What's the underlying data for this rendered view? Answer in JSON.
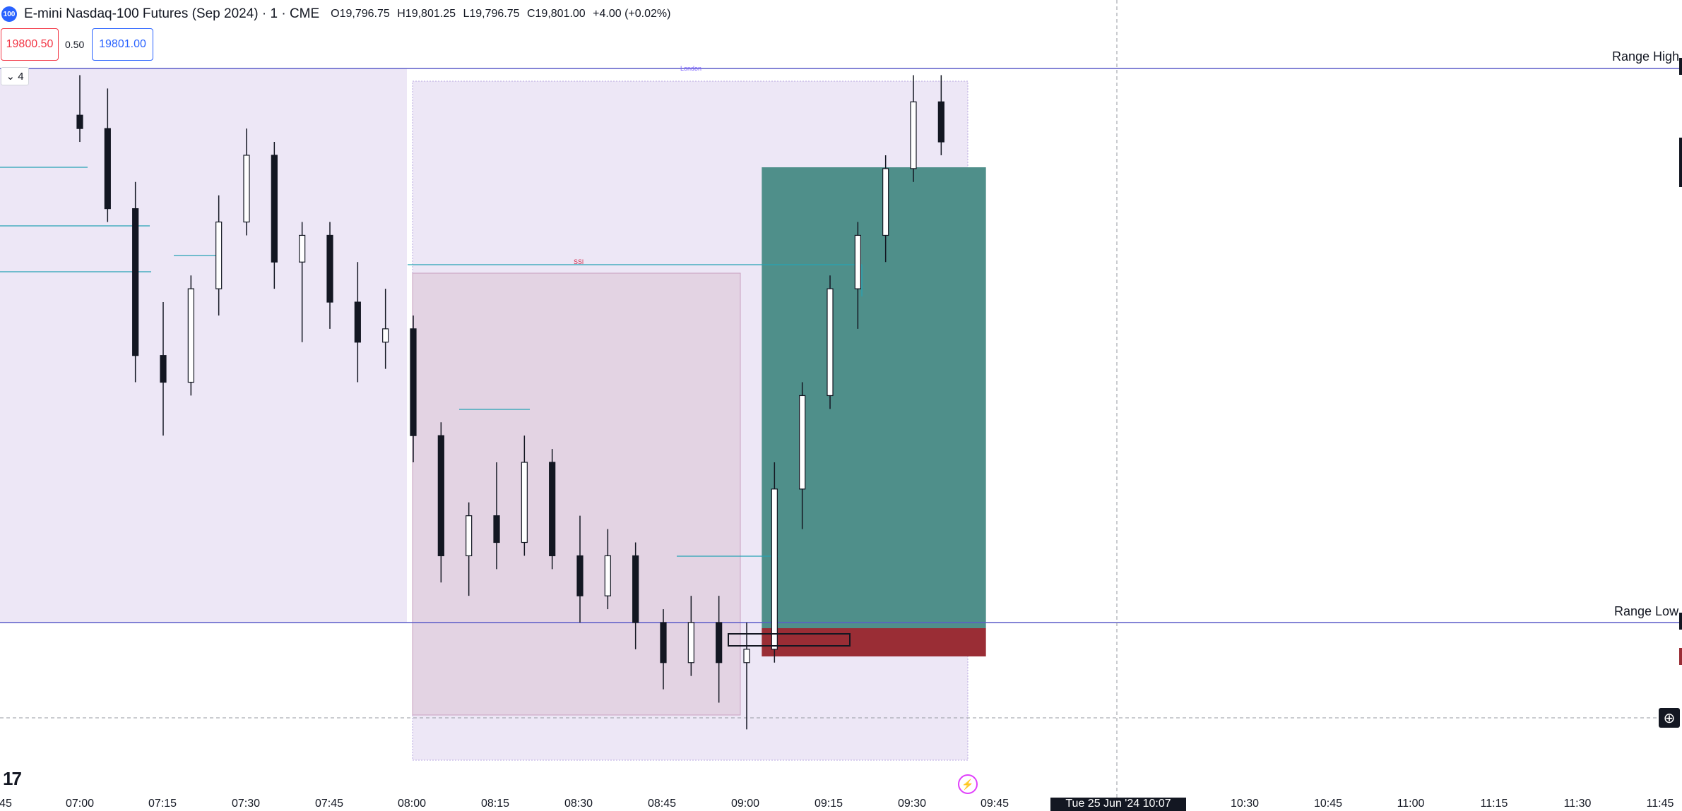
{
  "header": {
    "logo_text": "100",
    "title": "E-mini Nasdaq-100 Futures (Sep 2024) · 1 · CME",
    "open": "O19,796.75",
    "high": "H19,801.25",
    "low": "L19,796.75",
    "close": "C19,801.00",
    "change": "+4.00 (+0.02%)"
  },
  "trade": {
    "sell_price": "19800.50",
    "spread": "0.50",
    "buy_price": "19801.00"
  },
  "indicator_toggle": {
    "label": "4"
  },
  "labels": {
    "range_high": "Range High",
    "range_low": "Range Low",
    "session": "London",
    "ssl": "SSl"
  },
  "time_axis": {
    "ticks": [
      "45",
      "07:00",
      "07:15",
      "07:30",
      "07:45",
      "08:00",
      "08:15",
      "08:30",
      "08:45",
      "09:00",
      "09:15",
      "09:30",
      "09:45",
      "10:30",
      "10:45",
      "11:00",
      "11:15",
      "11:30",
      "11:45"
    ],
    "crosshair_time": "Tue 25 Jun '24   10:07"
  },
  "colors": {
    "range_line": "#5b5bc8",
    "session_fill": "#ede7f6",
    "killzone_fill": "#e3d3e3",
    "profit": "#4f8f8a",
    "loss": "#9a2d35",
    "liquidity_line": "#26a3b5",
    "candle": "#131722"
  },
  "icons": {
    "plus": "plus-circle-icon",
    "bolt": "lightning-icon",
    "tv_logo": "tradingview-logo"
  },
  "chart_data": {
    "type": "candlestick",
    "symbol": "NQU2024",
    "timeframe": "1",
    "range_high": 19801.5,
    "range_low": 19760.0,
    "candles": [
      {
        "t": "07:00",
        "o": 19798,
        "h": 19801,
        "l": 19796,
        "c": 19797
      },
      {
        "t": "07:05",
        "o": 19797,
        "h": 19800,
        "l": 19790,
        "c": 19791
      },
      {
        "t": "07:10",
        "o": 19791,
        "h": 19793,
        "l": 19778,
        "c": 19780
      },
      {
        "t": "07:15",
        "o": 19780,
        "h": 19784,
        "l": 19774,
        "c": 19778
      },
      {
        "t": "07:20",
        "o": 19778,
        "h": 19786,
        "l": 19777,
        "c": 19785
      },
      {
        "t": "07:25",
        "o": 19785,
        "h": 19792,
        "l": 19783,
        "c": 19790
      },
      {
        "t": "07:30",
        "o": 19790,
        "h": 19797,
        "l": 19789,
        "c": 19795
      },
      {
        "t": "07:35",
        "o": 19795,
        "h": 19796,
        "l": 19785,
        "c": 19787
      },
      {
        "t": "07:40",
        "o": 19787,
        "h": 19790,
        "l": 19781,
        "c": 19789
      },
      {
        "t": "07:45",
        "o": 19789,
        "h": 19790,
        "l": 19782,
        "c": 19784
      },
      {
        "t": "07:50",
        "o": 19784,
        "h": 19787,
        "l": 19778,
        "c": 19781
      },
      {
        "t": "07:55",
        "o": 19781,
        "h": 19785,
        "l": 19779,
        "c": 19782
      },
      {
        "t": "08:00",
        "o": 19782,
        "h": 19783,
        "l": 19772,
        "c": 19774
      },
      {
        "t": "08:05",
        "o": 19774,
        "h": 19775,
        "l": 19763,
        "c": 19765
      },
      {
        "t": "08:10",
        "o": 19765,
        "h": 19769,
        "l": 19762,
        "c": 19768
      },
      {
        "t": "08:15",
        "o": 19768,
        "h": 19772,
        "l": 19764,
        "c": 19766
      },
      {
        "t": "08:20",
        "o": 19766,
        "h": 19774,
        "l": 19765,
        "c": 19772
      },
      {
        "t": "08:25",
        "o": 19772,
        "h": 19773,
        "l": 19764,
        "c": 19765
      },
      {
        "t": "08:30",
        "o": 19765,
        "h": 19768,
        "l": 19760,
        "c": 19762
      },
      {
        "t": "08:35",
        "o": 19762,
        "h": 19767,
        "l": 19761,
        "c": 19765
      },
      {
        "t": "08:40",
        "o": 19765,
        "h": 19766,
        "l": 19758,
        "c": 19760
      },
      {
        "t": "08:45",
        "o": 19760,
        "h": 19761,
        "l": 19755,
        "c": 19757
      },
      {
        "t": "08:50",
        "o": 19757,
        "h": 19762,
        "l": 19756,
        "c": 19760
      },
      {
        "t": "08:55",
        "o": 19760,
        "h": 19762,
        "l": 19754,
        "c": 19757
      },
      {
        "t": "09:00",
        "o": 19757,
        "h": 19760,
        "l": 19752,
        "c": 19758
      },
      {
        "t": "09:05",
        "o": 19758,
        "h": 19772,
        "l": 19757,
        "c": 19770
      },
      {
        "t": "09:10",
        "o": 19770,
        "h": 19778,
        "l": 19767,
        "c": 19777
      },
      {
        "t": "09:15",
        "o": 19777,
        "h": 19786,
        "l": 19776,
        "c": 19785
      },
      {
        "t": "09:20",
        "o": 19785,
        "h": 19790,
        "l": 19782,
        "c": 19789
      },
      {
        "t": "09:25",
        "o": 19789,
        "h": 19795,
        "l": 19787,
        "c": 19794
      },
      {
        "t": "09:30",
        "o": 19794,
        "h": 19801,
        "l": 19793,
        "c": 19799
      },
      {
        "t": "09:35",
        "o": 19799,
        "h": 19801,
        "l": 19795,
        "c": 19796
      }
    ],
    "position": {
      "side": "long",
      "entry": 19760.0,
      "stop": 19758.0,
      "target": 19795.0,
      "start": "09:05",
      "end": "09:40"
    }
  }
}
